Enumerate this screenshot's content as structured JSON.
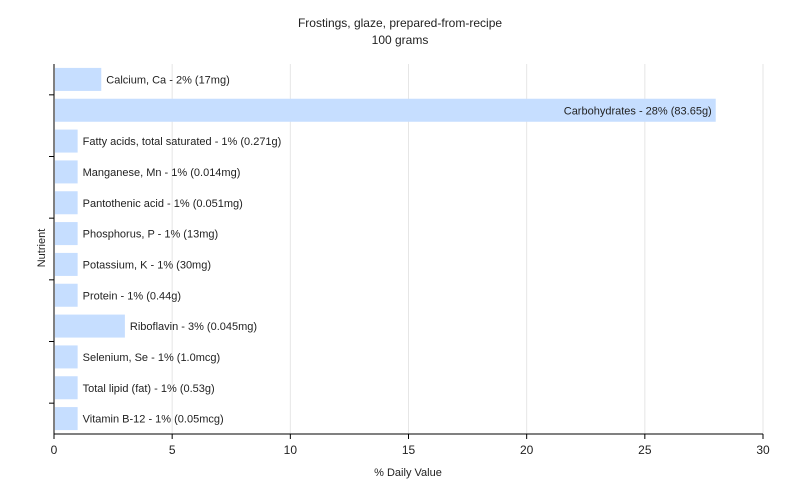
{
  "chart_data": {
    "type": "bar",
    "orientation": "horizontal",
    "title": "Frostings, glaze, prepared-from-recipe",
    "subtitle": "100 grams",
    "xlabel": "% Daily Value",
    "ylabel": "Nutrient",
    "xlim": [
      0,
      30
    ],
    "xticks": [
      0,
      5,
      10,
      15,
      20,
      25,
      30
    ],
    "grid": true,
    "bar_color": "#c6deff",
    "categories": [
      "Calcium, Ca",
      "Carbohydrates",
      "Fatty acids, total saturated",
      "Manganese, Mn",
      "Pantothenic acid",
      "Phosphorus, P",
      "Potassium, K",
      "Protein",
      "Riboflavin",
      "Selenium, Se",
      "Total lipid (fat)",
      "Vitamin B-12"
    ],
    "values": [
      2,
      28,
      1,
      1,
      1,
      1,
      1,
      1,
      3,
      1,
      1,
      1
    ],
    "labels": [
      "Calcium, Ca - 2% (17mg)",
      "Carbohydrates - 28% (83.65g)",
      "Fatty acids, total saturated - 1% (0.271g)",
      "Manganese, Mn - 1% (0.014mg)",
      "Pantothenic acid - 1% (0.051mg)",
      "Phosphorus, P - 1% (13mg)",
      "Potassium, K - 1% (30mg)",
      "Protein - 1% (0.44g)",
      "Riboflavin - 3% (0.045mg)",
      "Selenium, Se - 1% (1.0mcg)",
      "Total lipid (fat) - 1% (0.53g)",
      "Vitamin B-12 - 1% (0.05mcg)"
    ]
  }
}
